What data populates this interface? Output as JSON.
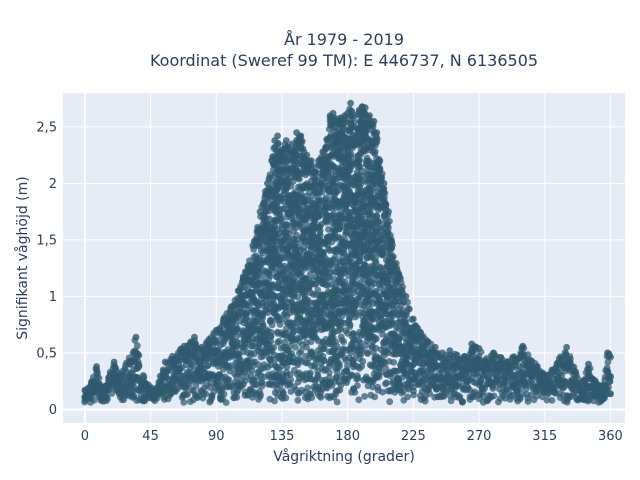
{
  "chart_data": {
    "type": "scatter",
    "title": "År 1979 - 2019",
    "subtitle": "Koordinat (Sweref 99 TM): E 446737, N 6136505",
    "xlabel": "Vågriktning (grader)",
    "ylabel": "Signifikant våghöjd (m)",
    "xlim": [
      -15,
      370
    ],
    "ylim": [
      -0.12,
      2.8
    ],
    "x_ticks": [
      0,
      45,
      90,
      135,
      180,
      225,
      270,
      315,
      360
    ],
    "x_tick_labels": [
      "0",
      "45",
      "90",
      "135",
      "180",
      "225",
      "270",
      "315",
      "360"
    ],
    "y_ticks": [
      0,
      0.5,
      1,
      1.5,
      2,
      2.5
    ],
    "y_tick_labels": [
      "0",
      "0,5",
      "1",
      "1,5",
      "2",
      "2,5"
    ],
    "grid": true,
    "legend": "none",
    "marker_color": "#2f5a70",
    "background_color": "#e5ecf6",
    "series": [
      {
        "x": [
          0,
          3,
          8,
          12,
          20,
          25,
          35,
          40,
          48,
          55,
          60,
          68,
          75,
          80,
          85,
          90,
          95,
          100,
          105,
          110,
          115,
          120,
          125,
          128,
          130,
          132,
          135,
          138,
          140,
          142,
          145,
          148,
          150,
          152,
          155,
          158,
          160,
          163,
          165,
          168,
          170,
          172,
          175,
          178,
          180,
          182,
          185,
          188,
          190,
          192,
          195,
          198,
          200,
          202,
          205,
          208,
          210,
          215,
          220,
          225,
          230,
          235,
          240,
          245,
          250,
          255,
          260,
          265,
          270,
          275,
          280,
          285,
          290,
          300,
          310,
          315,
          320,
          325,
          330,
          340,
          345,
          350,
          355,
          358
        ],
        "y": [
          0.17,
          0.19,
          0.38,
          0.16,
          0.42,
          0.3,
          0.64,
          0.3,
          0.15,
          0.42,
          0.47,
          0.56,
          0.64,
          0.55,
          0.62,
          0.7,
          0.8,
          0.9,
          1.05,
          1.22,
          1.45,
          1.75,
          2.0,
          2.2,
          2.38,
          2.42,
          2.3,
          2.38,
          2.3,
          2.35,
          2.45,
          2.42,
          2.28,
          2.25,
          2.2,
          2.1,
          2.2,
          2.28,
          2.32,
          2.6,
          2.62,
          2.55,
          2.58,
          2.6,
          2.62,
          2.71,
          2.6,
          2.65,
          2.68,
          2.67,
          2.6,
          2.55,
          2.45,
          2.2,
          2.0,
          1.75,
          1.5,
          1.2,
          1.0,
          0.8,
          0.68,
          0.6,
          0.55,
          0.5,
          0.52,
          0.48,
          0.47,
          0.58,
          0.54,
          0.45,
          0.5,
          0.46,
          0.42,
          0.56,
          0.38,
          0.3,
          0.35,
          0.45,
          0.55,
          0.22,
          0.4,
          0.24,
          0.2,
          0.5
        ]
      }
    ]
  }
}
